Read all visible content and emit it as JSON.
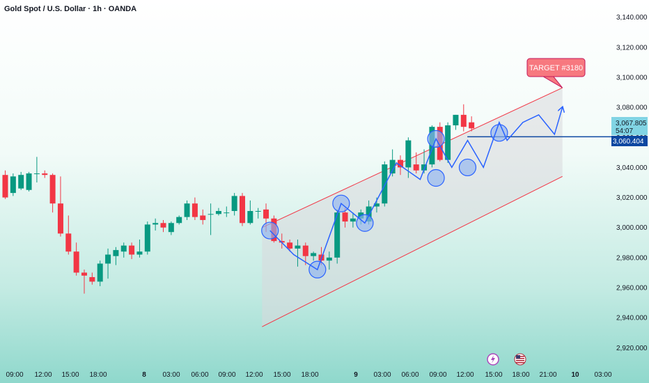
{
  "header": {
    "title": "Gold Spot / U.S. Dollar · 1h · OANDA"
  },
  "chart_data": {
    "type": "candlestick",
    "y_axis": {
      "ticks": [
        "3,140.000",
        "3,120.000",
        "3,100.000",
        "3,080.000",
        "3,060.000",
        "3,040.000",
        "3,020.000",
        "3,000.000",
        "2,980.000",
        "2,960.000",
        "2,940.000",
        "2,920.000"
      ],
      "ylim": [
        2916,
        3144
      ]
    },
    "x_axis": {
      "ticks": [
        "09:00",
        "12:00",
        "15:00",
        "18:00",
        "8",
        "03:00",
        "06:00",
        "09:00",
        "12:00",
        "15:00",
        "18:00",
        "9",
        "03:00",
        "06:00",
        "09:00",
        "12:00",
        "15:00",
        "18:00",
        "21:00",
        "10",
        "03:00"
      ],
      "bold_ticks": [
        "8",
        "9",
        "10"
      ]
    },
    "candles": [
      {
        "o": 3035,
        "h": 3038,
        "l": 3019,
        "c": 3020
      },
      {
        "o": 3023,
        "h": 3036,
        "l": 3021,
        "c": 3034
      },
      {
        "o": 3026,
        "h": 3037,
        "l": 3025,
        "c": 3035
      },
      {
        "o": 3025,
        "h": 3037,
        "l": 3024,
        "c": 3036
      },
      {
        "o": 3036,
        "h": 3047,
        "l": 3030,
        "c": 3036
      },
      {
        "o": 3036,
        "h": 3038,
        "l": 3033,
        "c": 3035
      },
      {
        "o": 3035,
        "h": 3036,
        "l": 3010,
        "c": 3016
      },
      {
        "o": 3016,
        "h": 3034,
        "l": 2994,
        "c": 2996
      },
      {
        "o": 2996,
        "h": 3008,
        "l": 2982,
        "c": 2984
      },
      {
        "o": 2984,
        "h": 2990,
        "l": 2968,
        "c": 2970
      },
      {
        "o": 2970,
        "h": 2972,
        "l": 2956,
        "c": 2968
      },
      {
        "o": 2967,
        "h": 2970,
        "l": 2962,
        "c": 2964
      },
      {
        "o": 2964,
        "h": 2978,
        "l": 2961,
        "c": 2976
      },
      {
        "o": 2976,
        "h": 2986,
        "l": 2966,
        "c": 2982
      },
      {
        "o": 2981,
        "h": 2987,
        "l": 2975,
        "c": 2985
      },
      {
        "o": 2984,
        "h": 2990,
        "l": 2980,
        "c": 2988
      },
      {
        "o": 2988,
        "h": 2990,
        "l": 2979,
        "c": 2982
      },
      {
        "o": 2982,
        "h": 2992,
        "l": 2980,
        "c": 2984
      },
      {
        "o": 2984,
        "h": 3004,
        "l": 2982,
        "c": 3002
      },
      {
        "o": 3002,
        "h": 3006,
        "l": 2998,
        "c": 3003
      },
      {
        "o": 3003,
        "h": 3005,
        "l": 2997,
        "c": 3000
      },
      {
        "o": 2997,
        "h": 3004,
        "l": 2995,
        "c": 3003
      },
      {
        "o": 3003,
        "h": 3008,
        "l": 3002,
        "c": 3007
      },
      {
        "o": 3007,
        "h": 3018,
        "l": 3005,
        "c": 3016
      },
      {
        "o": 3016,
        "h": 3020,
        "l": 3005,
        "c": 3007
      },
      {
        "o": 3008,
        "h": 3012,
        "l": 3002,
        "c": 3005
      },
      {
        "o": 3009,
        "h": 3016,
        "l": 2995,
        "c": 3009
      },
      {
        "o": 3009,
        "h": 3013,
        "l": 3008,
        "c": 3011
      },
      {
        "o": 3010,
        "h": 3014,
        "l": 3007,
        "c": 3010
      },
      {
        "o": 3011,
        "h": 3023,
        "l": 3008,
        "c": 3021
      },
      {
        "o": 3021,
        "h": 3023,
        "l": 3001,
        "c": 3003
      },
      {
        "o": 3003,
        "h": 3018,
        "l": 3002,
        "c": 3011
      },
      {
        "o": 3011,
        "h": 3013,
        "l": 3006,
        "c": 3011
      },
      {
        "o": 3012,
        "h": 3016,
        "l": 2997,
        "c": 3006
      },
      {
        "o": 3006,
        "h": 3008,
        "l": 2990,
        "c": 2991
      },
      {
        "o": 2991,
        "h": 2996,
        "l": 2986,
        "c": 2990
      },
      {
        "o": 2990,
        "h": 2992,
        "l": 2984,
        "c": 2986
      },
      {
        "o": 2986,
        "h": 2992,
        "l": 2974,
        "c": 2988
      },
      {
        "o": 2988,
        "h": 2990,
        "l": 2975,
        "c": 2981
      },
      {
        "o": 2981,
        "h": 2984,
        "l": 2978,
        "c": 2983
      },
      {
        "o": 2982,
        "h": 2987,
        "l": 2975,
        "c": 2978
      },
      {
        "o": 2978,
        "h": 2984,
        "l": 2972,
        "c": 2980
      },
      {
        "o": 2980,
        "h": 3012,
        "l": 2976,
        "c": 3010
      },
      {
        "o": 3010,
        "h": 3013,
        "l": 3000,
        "c": 3004
      },
      {
        "o": 3004,
        "h": 3010,
        "l": 3000,
        "c": 3006
      },
      {
        "o": 3006,
        "h": 3012,
        "l": 3002,
        "c": 3010
      },
      {
        "o": 3004,
        "h": 3018,
        "l": 3002,
        "c": 3014
      },
      {
        "o": 3014,
        "h": 3020,
        "l": 3010,
        "c": 3016
      },
      {
        "o": 3016,
        "h": 3044,
        "l": 3014,
        "c": 3042
      },
      {
        "o": 3036,
        "h": 3052,
        "l": 3034,
        "c": 3045
      },
      {
        "o": 3045,
        "h": 3048,
        "l": 3035,
        "c": 3040
      },
      {
        "o": 3040,
        "h": 3060,
        "l": 3033,
        "c": 3058
      },
      {
        "o": 3042,
        "h": 3050,
        "l": 3036,
        "c": 3038
      },
      {
        "o": 3038,
        "h": 3052,
        "l": 3036,
        "c": 3042
      },
      {
        "o": 3042,
        "h": 3068,
        "l": 3040,
        "c": 3067
      },
      {
        "o": 3067,
        "h": 3070,
        "l": 3044,
        "c": 3045
      },
      {
        "o": 3045,
        "h": 3070,
        "l": 3043,
        "c": 3068
      },
      {
        "o": 3068,
        "h": 3075,
        "l": 3065,
        "c": 3075
      },
      {
        "o": 3075,
        "h": 3082,
        "l": 3064,
        "c": 3067
      },
      {
        "o": 3070,
        "h": 3074,
        "l": 3064,
        "c": 3066
      }
    ],
    "candle_colors": {
      "up": "#089981",
      "down": "#f23645"
    },
    "current_price": {
      "price": "3,067.805",
      "countdown": "54:07",
      "color": "#81d4e4"
    },
    "level_line": {
      "price": "3,060.404",
      "value": 3060.404,
      "color": "#0d47a1"
    },
    "channel": {
      "upper": [
        [
          32.5,
          3000
        ],
        [
          70.5,
          3093
        ]
      ],
      "lower": [
        [
          32.5,
          2934
        ],
        [
          70.5,
          3034
        ]
      ],
      "line_color": "#f23645",
      "fill_color": "#d8d8dc"
    },
    "zigzag_path": [
      [
        33.5,
        2998
      ],
      [
        36.5,
        2982
      ],
      [
        39.5,
        2972
      ],
      [
        42.5,
        3016
      ],
      [
        45.5,
        3003
      ],
      [
        49.5,
        3043
      ],
      [
        52.5,
        3032
      ],
      [
        54.5,
        3059
      ],
      [
        56.5,
        3040
      ],
      [
        58.5,
        3058
      ],
      [
        60.5,
        3040
      ],
      [
        62.5,
        3070
      ],
      [
        63.5,
        3058
      ],
      [
        65.5,
        3070
      ],
      [
        67.5,
        3075
      ],
      [
        69.5,
        3062
      ],
      [
        70.5,
        3080
      ]
    ],
    "circles": [
      [
        33.5,
        2998
      ],
      [
        39.5,
        2972
      ],
      [
        42.5,
        3016
      ],
      [
        45.5,
        3003
      ],
      [
        54.5,
        3059
      ],
      [
        54.5,
        3033
      ],
      [
        58.5,
        3040
      ],
      [
        62.5,
        3063
      ]
    ],
    "zigzag_color": "#2962ff",
    "annotation": {
      "text": "TARGET #3180",
      "fill": "#f7787f",
      "border": "#c2185b",
      "pointer_value": 3093
    },
    "event_icons": [
      "flash-icon",
      "us-flag-icon"
    ]
  }
}
